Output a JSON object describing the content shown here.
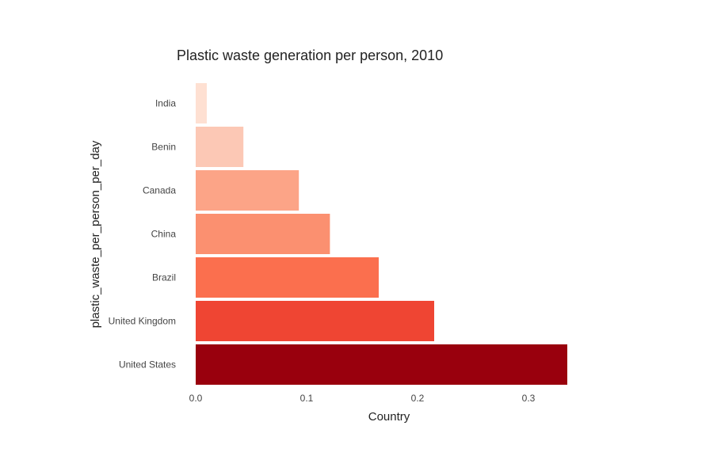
{
  "chart_data": {
    "type": "bar",
    "orientation": "horizontal",
    "title": "Plastic waste generation per person, 2010",
    "xlabel": "Country",
    "ylabel": "plastic_waste_per_person_per_day",
    "categories": [
      "India",
      "Benin",
      "Canada",
      "China",
      "Brazil",
      "United Kingdom",
      "United States"
    ],
    "values": [
      0.01,
      0.043,
      0.093,
      0.121,
      0.165,
      0.215,
      0.335
    ],
    "colors": [
      "#fee0d2",
      "#fcc8b5",
      "#fca487",
      "#fb9070",
      "#fb6f4e",
      "#ef4533",
      "#99000d"
    ],
    "xlim": [
      0,
      0.35
    ],
    "xticks": [
      "0.0",
      "0.1",
      "0.2",
      "0.3"
    ],
    "xtick_values": [
      0,
      0.1,
      0.2,
      0.3
    ],
    "grid": false,
    "legend": false
  }
}
